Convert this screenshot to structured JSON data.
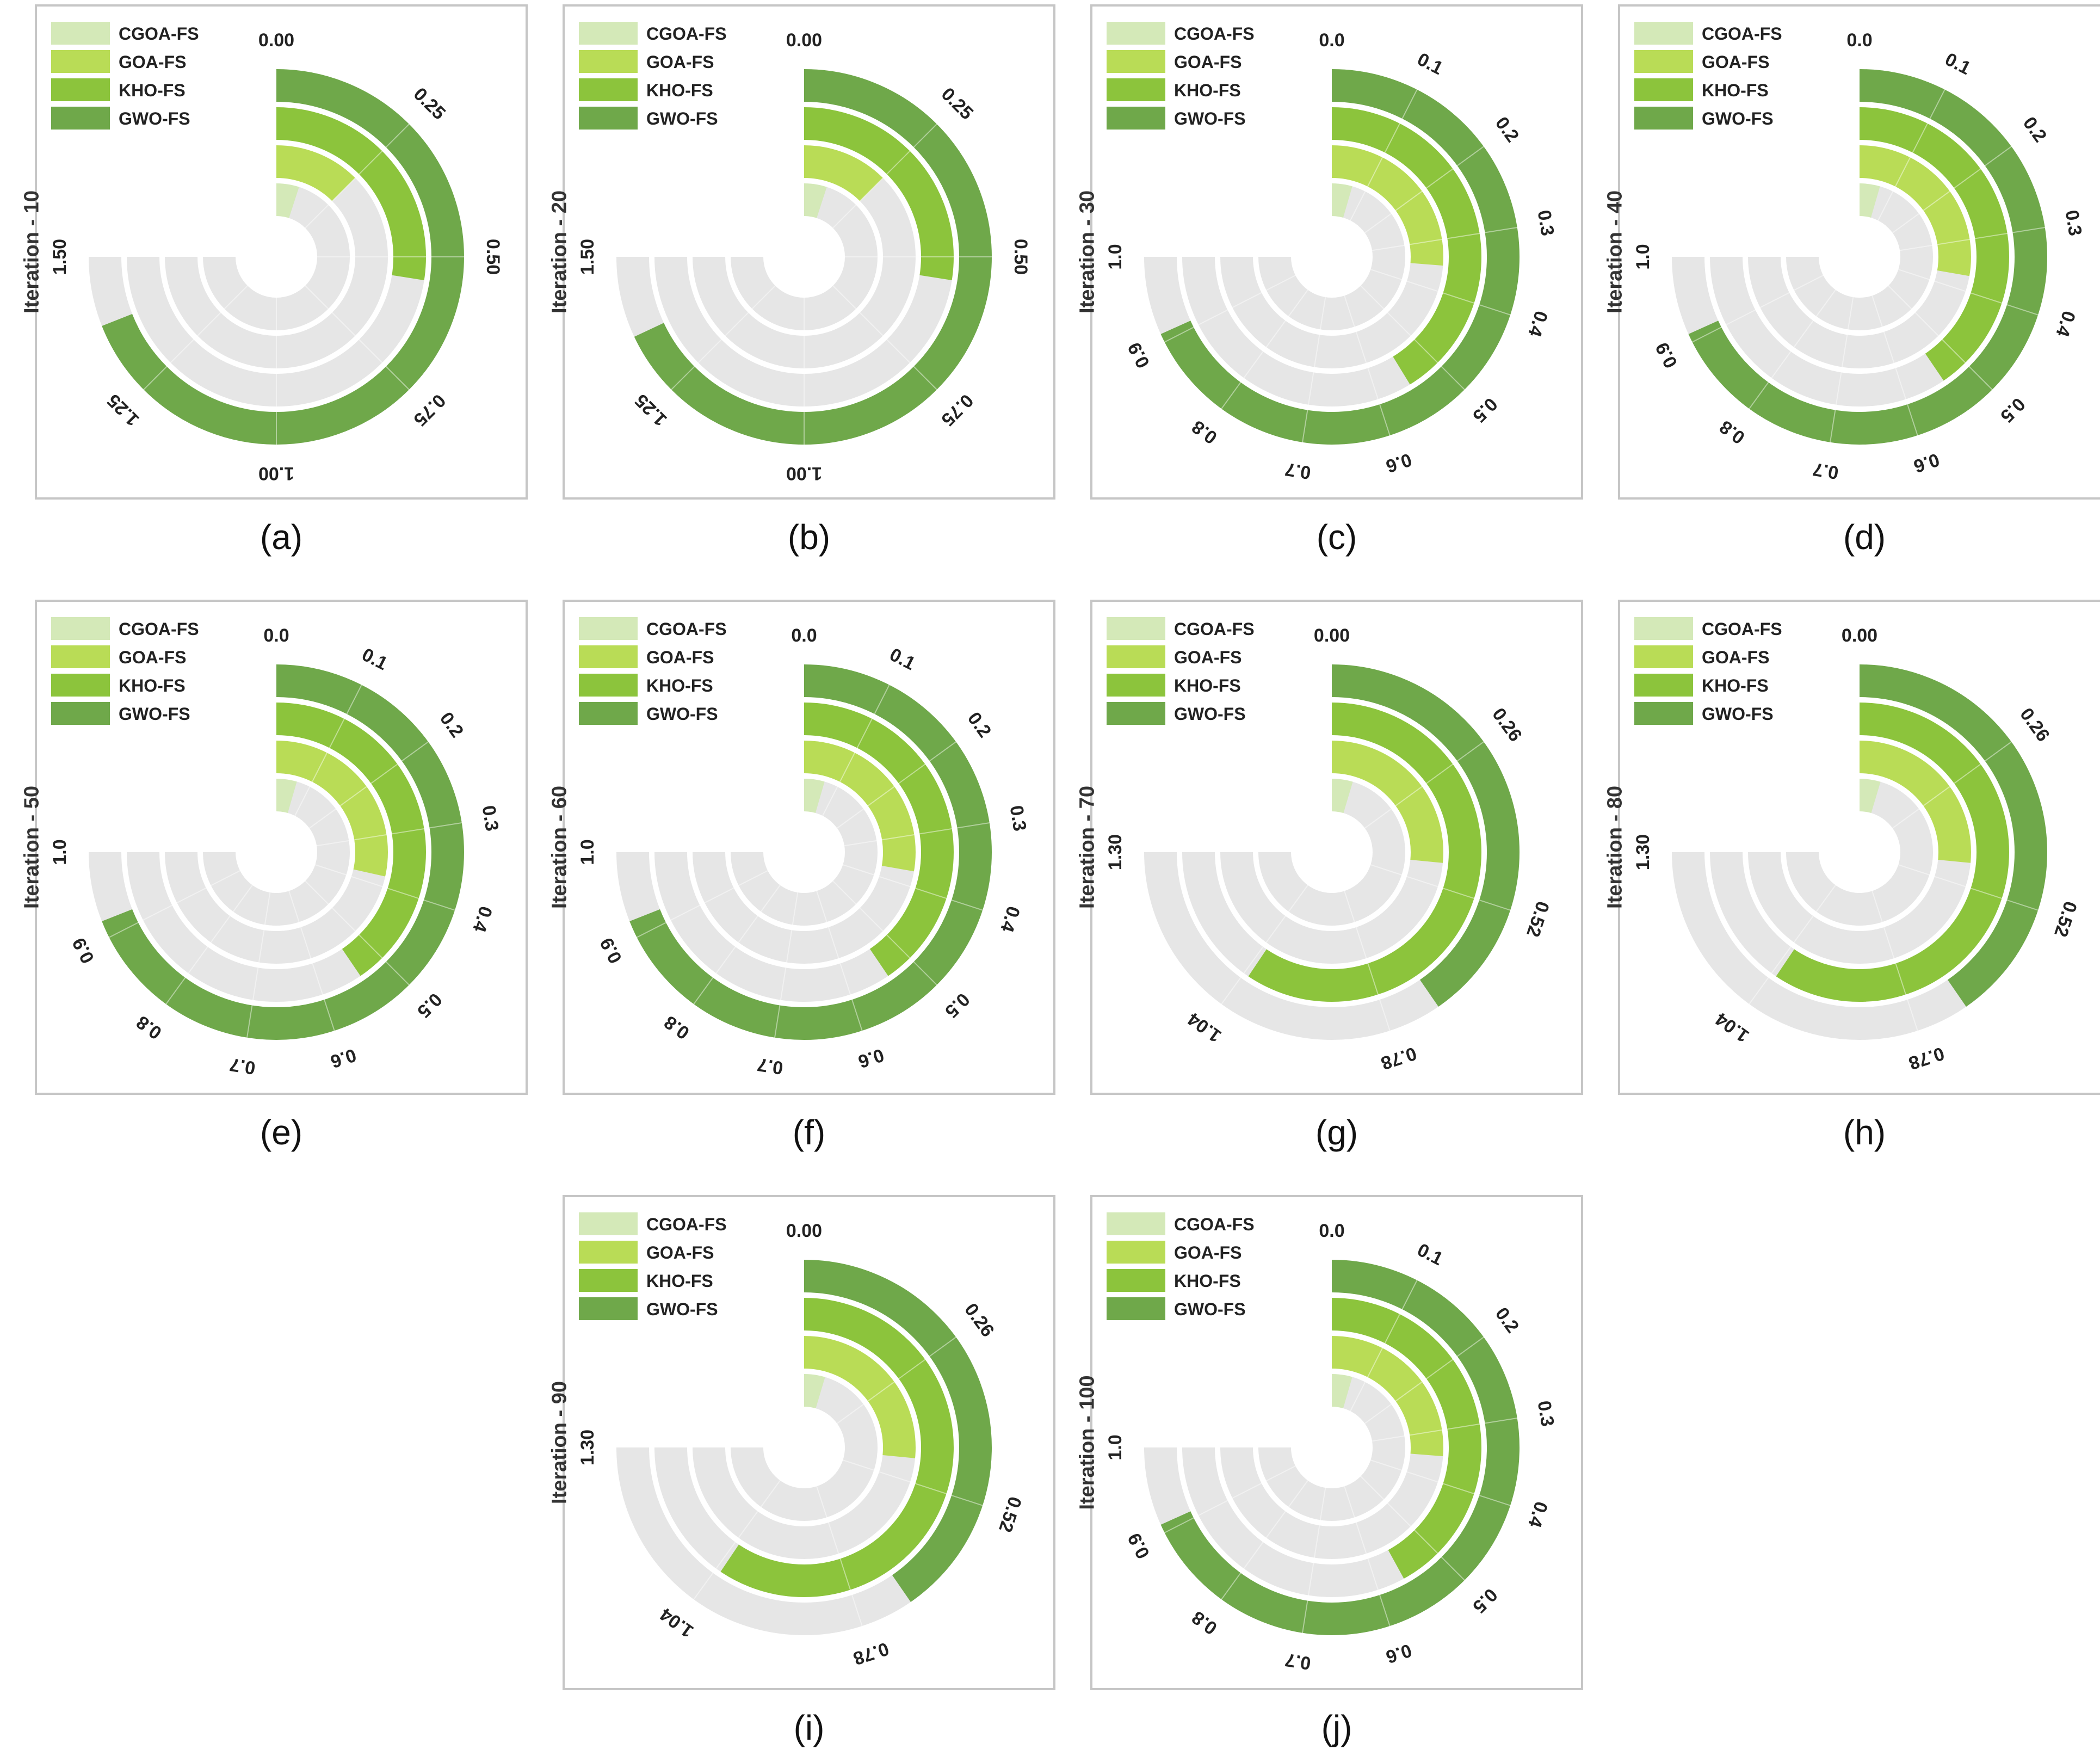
{
  "colors": {
    "background_track": "#e6e6e6",
    "CGOA-FS": "#d4e9b8",
    "GOA-FS": "#b9dc56",
    "KHO-FS": "#8cc43c",
    "GWO-FS": "#6fa84a"
  },
  "chart_data": [
    {
      "panel": "(a)",
      "ylabel": "Iteration - 10",
      "type": "radial_bar",
      "categories": [
        "CGOA-FS",
        "GOA-FS",
        "KHO-FS",
        "GWO-FS"
      ],
      "values": [
        0.1,
        0.25,
        0.55,
        1.38
      ],
      "axis_max": 1.5,
      "ticks": [
        "0.00",
        "0.25",
        "0.50",
        "0.75",
        "1.00",
        "1.25",
        "1.50"
      ]
    },
    {
      "panel": "(b)",
      "ylabel": "Iteration - 20",
      "type": "radial_bar",
      "categories": [
        "CGOA-FS",
        "GOA-FS",
        "KHO-FS",
        "GWO-FS"
      ],
      "values": [
        0.1,
        0.25,
        0.55,
        1.36
      ],
      "axis_max": 1.5,
      "ticks": [
        "0.00",
        "0.25",
        "0.50",
        "0.75",
        "1.00",
        "1.25",
        "1.50"
      ]
    },
    {
      "panel": "(c)",
      "ylabel": "Iteration - 30",
      "type": "radial_bar",
      "categories": [
        "CGOA-FS",
        "GOA-FS",
        "KHO-FS",
        "GWO-FS"
      ],
      "values": [
        0.06,
        0.35,
        0.55,
        0.91
      ],
      "axis_max": 1.0,
      "ticks": [
        "0.0",
        "0.1",
        "0.2",
        "0.3",
        "0.4",
        "0.5",
        "0.6",
        "0.7",
        "0.8",
        "0.9",
        "1.0"
      ]
    },
    {
      "panel": "(d)",
      "ylabel": "Iteration - 40",
      "type": "radial_bar",
      "categories": [
        "CGOA-FS",
        "GOA-FS",
        "KHO-FS",
        "GWO-FS"
      ],
      "values": [
        0.06,
        0.37,
        0.54,
        0.91
      ],
      "axis_max": 1.0,
      "ticks": [
        "0.0",
        "0.1",
        "0.2",
        "0.3",
        "0.4",
        "0.5",
        "0.6",
        "0.7",
        "0.8",
        "0.9",
        "1.0"
      ]
    },
    {
      "panel": "(e)",
      "ylabel": "Iteration - 50",
      "type": "radial_bar",
      "categories": [
        "CGOA-FS",
        "GOA-FS",
        "KHO-FS",
        "GWO-FS"
      ],
      "values": [
        0.06,
        0.38,
        0.54,
        0.92
      ],
      "axis_max": 1.0,
      "ticks": [
        "0.0",
        "0.1",
        "0.2",
        "0.3",
        "0.4",
        "0.5",
        "0.6",
        "0.7",
        "0.8",
        "0.9",
        "1.0"
      ]
    },
    {
      "panel": "(f)",
      "ylabel": "Iteration - 60",
      "type": "radial_bar",
      "categories": [
        "CGOA-FS",
        "GOA-FS",
        "KHO-FS",
        "GWO-FS"
      ],
      "values": [
        0.06,
        0.37,
        0.54,
        0.92
      ],
      "axis_max": 1.0,
      "ticks": [
        "0.0",
        "0.1",
        "0.2",
        "0.3",
        "0.4",
        "0.5",
        "0.6",
        "0.7",
        "0.8",
        "0.9",
        "1.0"
      ]
    },
    {
      "panel": "(g)",
      "ylabel": "Iteration - 70",
      "type": "radial_bar",
      "categories": [
        "CGOA-FS",
        "GOA-FS",
        "KHO-FS",
        "GWO-FS"
      ],
      "values": [
        0.08,
        0.46,
        1.03,
        0.7
      ],
      "axis_max": 1.3,
      "ticks": [
        "0.00",
        "0.26",
        "0.52",
        "0.78",
        "1.04",
        "1.30"
      ]
    },
    {
      "panel": "(h)",
      "ylabel": "Iteration - 80",
      "type": "radial_bar",
      "categories": [
        "CGOA-FS",
        "GOA-FS",
        "KHO-FS",
        "GWO-FS"
      ],
      "values": [
        0.08,
        0.46,
        1.03,
        0.7
      ],
      "axis_max": 1.3,
      "ticks": [
        "0.00",
        "0.26",
        "0.52",
        "0.78",
        "1.04",
        "1.30"
      ]
    },
    {
      "panel": "(i)",
      "ylabel": "Iteration - 90",
      "type": "radial_bar",
      "categories": [
        "CGOA-FS",
        "GOA-FS",
        "KHO-FS",
        "GWO-FS"
      ],
      "values": [
        0.08,
        0.46,
        1.03,
        0.7
      ],
      "axis_max": 1.3,
      "ticks": [
        "0.00",
        "0.26",
        "0.52",
        "0.78",
        "1.04",
        "1.30"
      ]
    },
    {
      "panel": "(j)",
      "ylabel": "Iteration - 100",
      "type": "radial_bar",
      "categories": [
        "CGOA-FS",
        "GOA-FS",
        "KHO-FS",
        "GWO-FS"
      ],
      "values": [
        0.06,
        0.35,
        0.56,
        0.91
      ],
      "axis_max": 1.0,
      "ticks": [
        "0.0",
        "0.1",
        "0.2",
        "0.3",
        "0.4",
        "0.5",
        "0.6",
        "0.7",
        "0.8",
        "0.9",
        "1.0"
      ]
    }
  ]
}
